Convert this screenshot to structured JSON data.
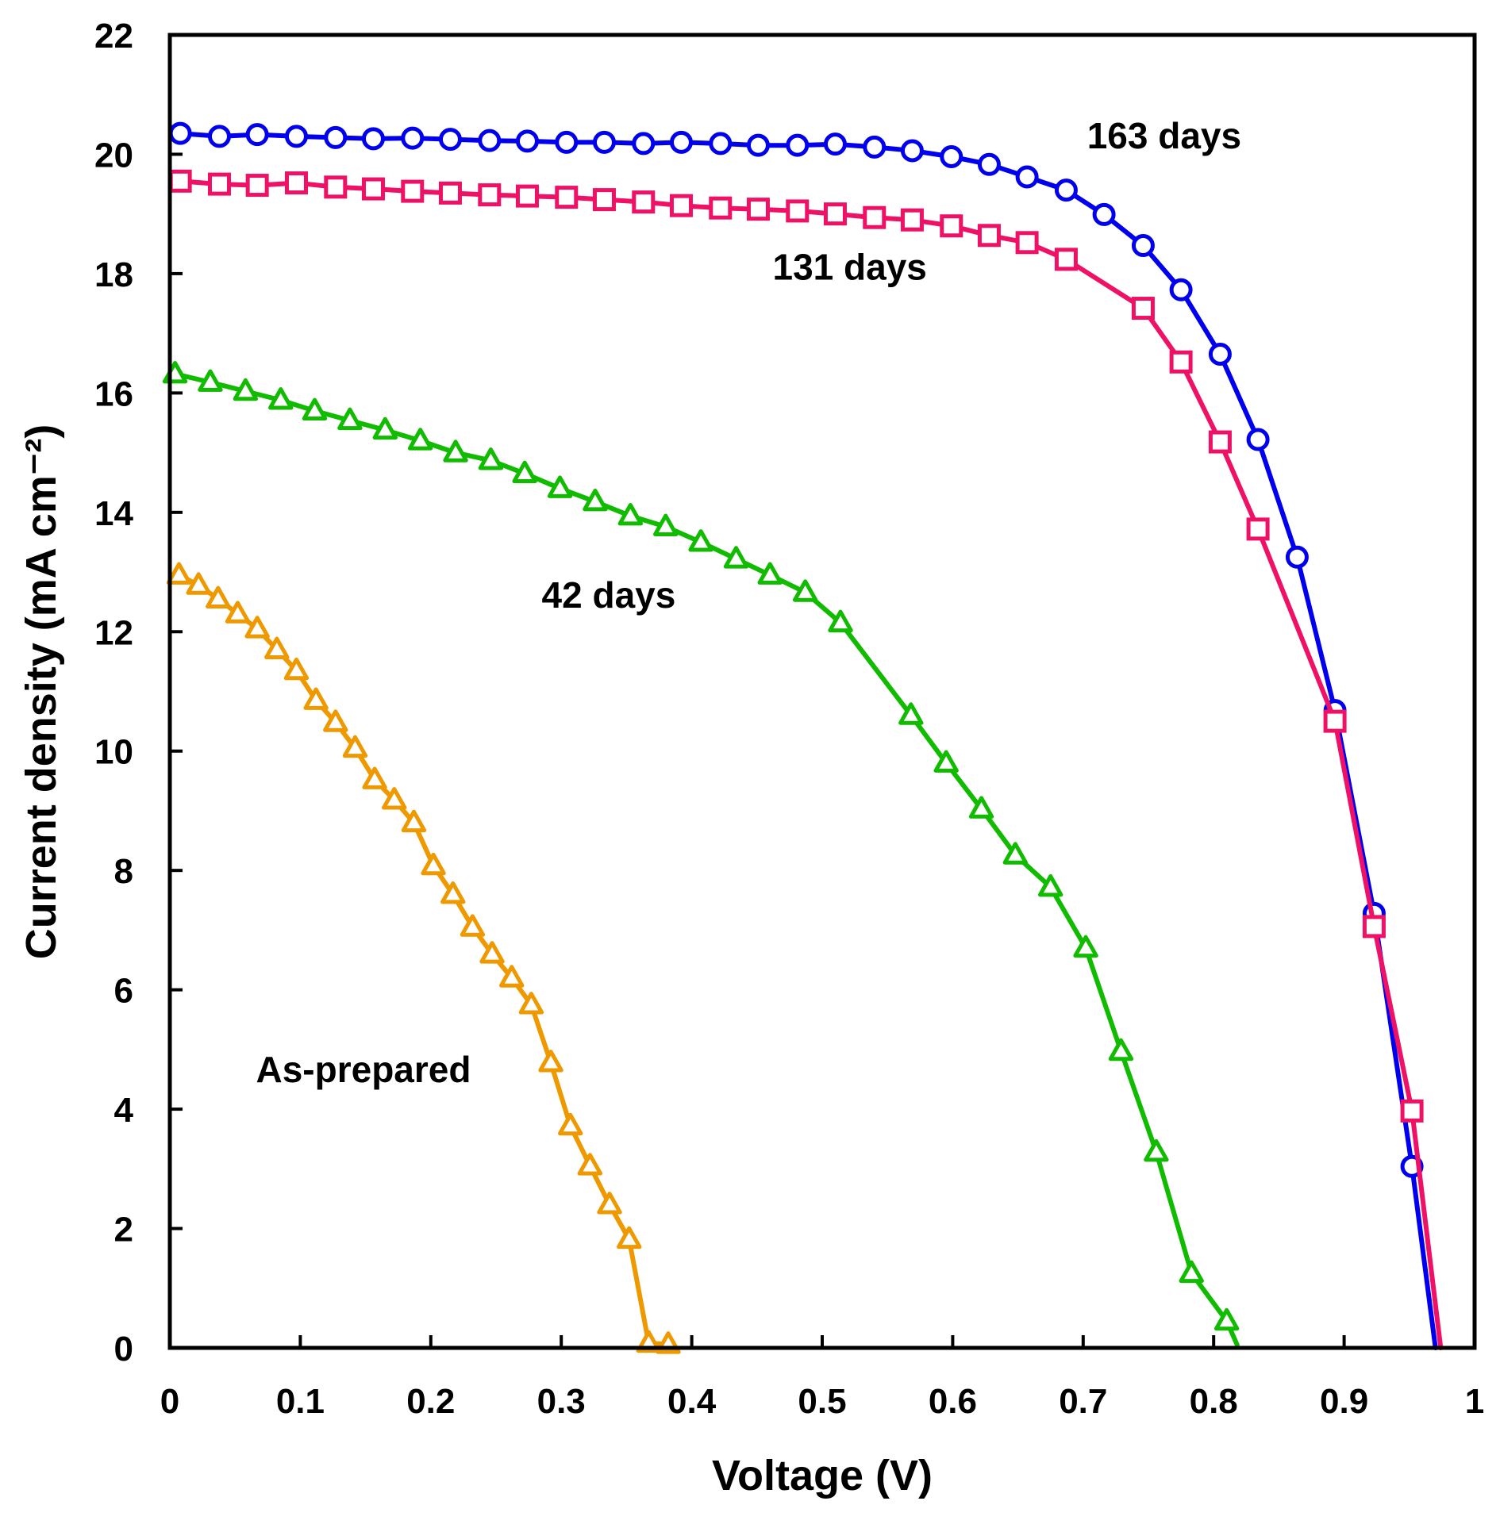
{
  "chart_data": {
    "type": "line",
    "xlabel": "Voltage (V)",
    "ylabel": "Current density (mA cm⁻²)",
    "xlim": [
      0,
      1
    ],
    "ylim": [
      0,
      22
    ],
    "xticks": [
      0,
      0.1,
      0.2,
      0.3,
      0.4,
      0.5,
      0.6,
      0.7,
      0.8,
      0.9,
      1
    ],
    "xtick_labels": [
      "0",
      "0.1",
      "0.2",
      "0.3",
      "0.4",
      "0.5",
      "0.6",
      "0.7",
      "0.8",
      "0.9",
      "1"
    ],
    "yticks": [
      0,
      2,
      4,
      6,
      8,
      10,
      12,
      14,
      16,
      18,
      20,
      22
    ],
    "ytick_labels": [
      "0",
      "2",
      "4",
      "6",
      "8",
      "10",
      "12",
      "14",
      "16",
      "18",
      "20",
      "22"
    ],
    "grid": false,
    "series": [
      {
        "name": "163 days",
        "color": "#0000ee",
        "marker": "circle",
        "label_anchor": [
          0.703,
          20.1
        ],
        "x": [
          0.008,
          0.038,
          0.067,
          0.097,
          0.127,
          0.156,
          0.186,
          0.215,
          0.245,
          0.274,
          0.304,
          0.333,
          0.363,
          0.392,
          0.422,
          0.451,
          0.481,
          0.51,
          0.54,
          0.569,
          0.599,
          0.628,
          0.657,
          0.687,
          0.716,
          0.746,
          0.775,
          0.805,
          0.834,
          0.864,
          0.893,
          0.923,
          0.952
        ],
        "y": [
          20.35,
          20.3,
          20.33,
          20.3,
          20.28,
          20.26,
          20.27,
          20.25,
          20.23,
          20.22,
          20.2,
          20.2,
          20.18,
          20.2,
          20.18,
          20.15,
          20.15,
          20.17,
          20.12,
          20.06,
          19.96,
          19.83,
          19.62,
          19.4,
          18.99,
          18.47,
          17.73,
          16.65,
          15.22,
          13.25,
          10.68,
          7.28,
          3.04
        ],
        "line_x": [
          0.97
        ],
        "line_y": [
          0
        ]
      },
      {
        "name": "131 days",
        "color": "#ee1166",
        "marker": "square",
        "label_anchor": [
          0.462,
          17.9
        ],
        "x": [
          0.008,
          0.038,
          0.067,
          0.097,
          0.127,
          0.156,
          0.186,
          0.215,
          0.245,
          0.274,
          0.304,
          0.333,
          0.363,
          0.392,
          0.422,
          0.451,
          0.481,
          0.51,
          0.54,
          0.569,
          0.599,
          0.628,
          0.657,
          0.687,
          0.746,
          0.775,
          0.805,
          0.834,
          0.893,
          0.923,
          0.952
        ],
        "y": [
          19.55,
          19.5,
          19.48,
          19.52,
          19.45,
          19.42,
          19.38,
          19.35,
          19.32,
          19.3,
          19.28,
          19.24,
          19.2,
          19.14,
          19.1,
          19.08,
          19.05,
          19.0,
          18.94,
          18.9,
          18.8,
          18.64,
          18.52,
          18.24,
          17.42,
          16.52,
          15.18,
          13.72,
          10.5,
          7.06,
          3.97
        ],
        "line_x": [
          0.974
        ],
        "line_y": [
          0
        ]
      },
      {
        "name": "42 days",
        "color": "#11bb00",
        "marker": "triangle",
        "label_anchor": [
          0.285,
          12.4
        ],
        "x": [
          0.004,
          0.031,
          0.058,
          0.085,
          0.111,
          0.138,
          0.165,
          0.192,
          0.219,
          0.246,
          0.272,
          0.299,
          0.326,
          0.353,
          0.38,
          0.407,
          0.434,
          0.46,
          0.487,
          0.514,
          0.568,
          0.595,
          0.622,
          0.648,
          0.675,
          0.702,
          0.729,
          0.756,
          0.783,
          0.81
        ],
        "y": [
          16.32,
          16.18,
          16.03,
          15.88,
          15.7,
          15.54,
          15.38,
          15.2,
          15.0,
          14.87,
          14.65,
          14.4,
          14.18,
          13.94,
          13.76,
          13.5,
          13.22,
          12.95,
          12.66,
          12.15,
          10.6,
          9.8,
          9.03,
          8.26,
          7.72,
          6.7,
          4.97,
          3.28,
          1.25,
          0.45
        ],
        "line_x": [
          0.818
        ],
        "line_y": [
          0.05
        ]
      },
      {
        "name": "As-prepared",
        "color": "#ee9900",
        "marker": "triangle",
        "label_anchor": [
          0.066,
          4.45
        ],
        "x": [
          0.007,
          0.022,
          0.037,
          0.052,
          0.067,
          0.082,
          0.097,
          0.112,
          0.127,
          0.142,
          0.157,
          0.172,
          0.187,
          0.202,
          0.217,
          0.232,
          0.247,
          0.262,
          0.277,
          0.292,
          0.307,
          0.322,
          0.337,
          0.352,
          0.367,
          0.382
        ],
        "y": [
          12.95,
          12.78,
          12.55,
          12.3,
          12.05,
          11.7,
          11.35,
          10.85,
          10.48,
          10.05,
          9.52,
          9.18,
          8.8,
          8.08,
          7.6,
          7.05,
          6.6,
          6.2,
          5.75,
          4.78,
          3.72,
          3.05,
          2.4,
          1.82,
          0.08,
          0.06
        ],
        "line_x": [],
        "line_y": []
      }
    ]
  }
}
